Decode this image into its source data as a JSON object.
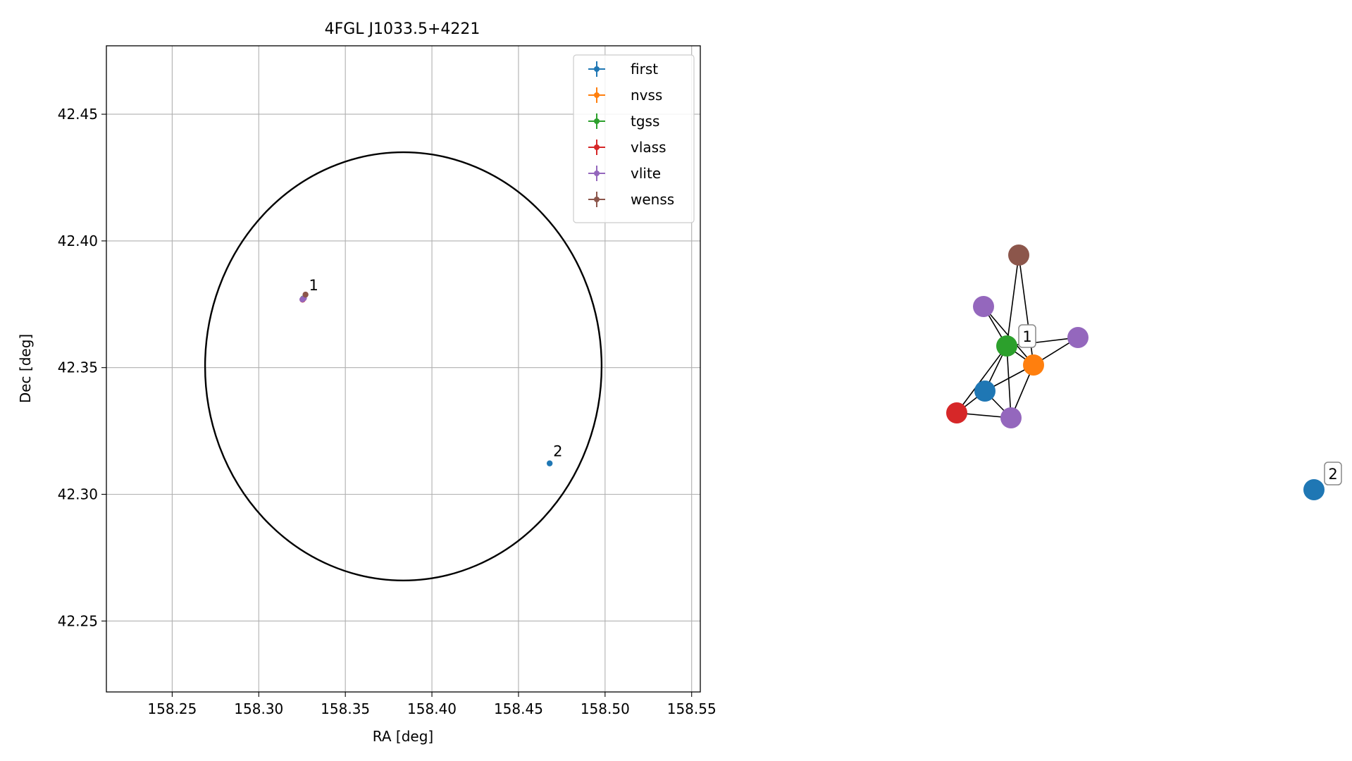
{
  "chart_data": [
    {
      "type": "scatter",
      "title": "4FGL J1033.5+4221",
      "xlabel": "RA [deg]",
      "ylabel": "Dec [deg]",
      "xlim": [
        158.212,
        158.555
      ],
      "ylim": [
        42.222,
        42.477
      ],
      "xticks": [
        158.25,
        158.3,
        158.35,
        158.4,
        158.45,
        158.5,
        158.55
      ],
      "xtick_labels": [
        "158.25",
        "158.30",
        "158.35",
        "158.40",
        "158.45",
        "158.50",
        "158.55"
      ],
      "yticks": [
        42.25,
        42.3,
        42.35,
        42.4,
        42.45
      ],
      "ytick_labels": [
        "42.25",
        "42.30",
        "42.35",
        "42.40",
        "42.45"
      ],
      "grid": true,
      "legend_position": "upper right",
      "ellipse": {
        "center": [
          158.3835,
          42.3505
        ],
        "radius_x": 0.1145,
        "radius_y": 0.0845,
        "color": "#000000"
      },
      "series": [
        {
          "name": "first",
          "color": "#1f77b4",
          "points": [
            [
              158.3255,
              42.3771
            ],
            [
              158.468,
              42.3122
            ]
          ]
        },
        {
          "name": "nvss",
          "color": "#ff7f0e",
          "points": [
            [
              158.3258,
              42.3772
            ]
          ]
        },
        {
          "name": "tgss",
          "color": "#2ca02c",
          "points": [
            [
              158.3257,
              42.3773
            ]
          ]
        },
        {
          "name": "vlass",
          "color": "#d62728",
          "points": [
            [
              158.3253,
              42.3768
            ]
          ]
        },
        {
          "name": "vlite",
          "color": "#9467bd",
          "points": [
            [
              158.3252,
              42.3769
            ],
            [
              158.3261,
              42.3774
            ]
          ]
        },
        {
          "name": "wenss",
          "color": "#8c564b",
          "points": [
            [
              158.327,
              42.3788
            ]
          ]
        }
      ],
      "annotations": [
        {
          "text": "1",
          "x": 158.329,
          "y": 42.3805
        },
        {
          "text": "2",
          "x": 158.47,
          "y": 42.315
        }
      ]
    },
    {
      "type": "network",
      "nodes": [
        {
          "id": "wenss",
          "color": "#8c564b"
        },
        {
          "id": "vlite-a",
          "color": "#9467bd"
        },
        {
          "id": "vlite-b",
          "color": "#9467bd"
        },
        {
          "id": "tgss",
          "color": "#2ca02c",
          "label": "1"
        },
        {
          "id": "nvss",
          "color": "#ff7f0e"
        },
        {
          "id": "first-1",
          "color": "#1f77b4"
        },
        {
          "id": "vlass",
          "color": "#d62728"
        },
        {
          "id": "vlite-c",
          "color": "#9467bd"
        },
        {
          "id": "first-2",
          "color": "#1f77b4",
          "label": "2"
        }
      ],
      "edges": [
        [
          "wenss",
          "tgss"
        ],
        [
          "wenss",
          "nvss"
        ],
        [
          "vlite-a",
          "tgss"
        ],
        [
          "vlite-a",
          "nvss"
        ],
        [
          "tgss",
          "vlite-b"
        ],
        [
          "nvss",
          "vlite-b"
        ],
        [
          "tgss",
          "nvss"
        ],
        [
          "tgss",
          "first-1"
        ],
        [
          "tgss",
          "vlass"
        ],
        [
          "tgss",
          "vlite-c"
        ],
        [
          "nvss",
          "first-1"
        ],
        [
          "nvss",
          "vlite-c"
        ],
        [
          "first-1",
          "vlass"
        ],
        [
          "first-1",
          "vlite-c"
        ],
        [
          "vlass",
          "vlite-c"
        ]
      ]
    }
  ]
}
